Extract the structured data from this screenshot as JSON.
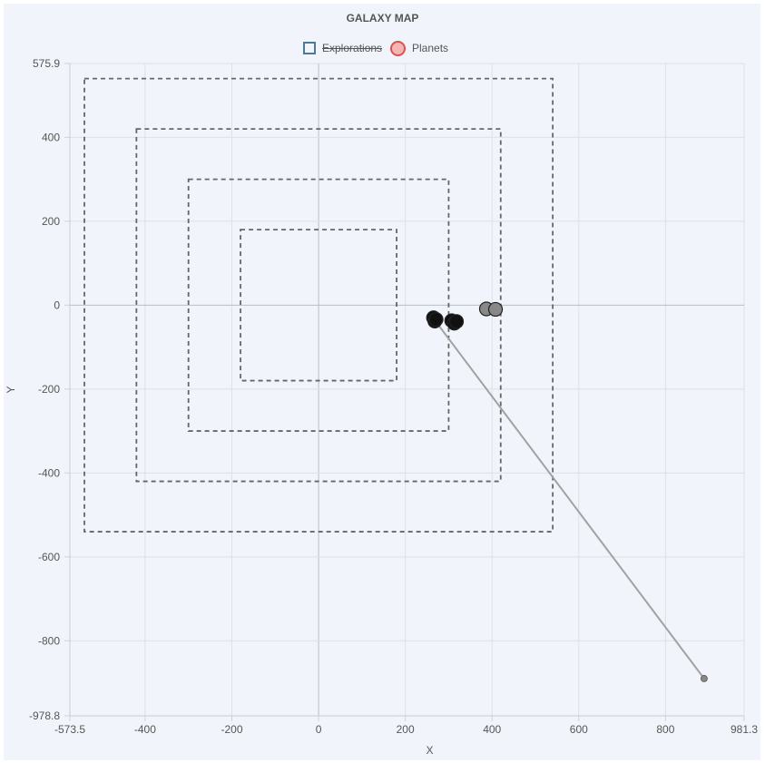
{
  "chart_data": {
    "type": "scatter",
    "title": "GALAXY MAP",
    "xlabel": "X",
    "ylabel": "Y",
    "xlim": [
      -573.5,
      981.3
    ],
    "ylim": [
      -978.8,
      575.9
    ],
    "x_ticks": [
      "-573.5",
      "-400",
      "-200",
      "0",
      "200",
      "400",
      "600",
      "800",
      "981.3"
    ],
    "y_ticks": [
      "575.9",
      "400",
      "200",
      "0",
      "-200",
      "-400",
      "-600",
      "-800",
      "-978.8"
    ],
    "x_tick_values": [
      -573.5,
      -400,
      -200,
      0,
      200,
      400,
      600,
      800,
      981.3
    ],
    "y_tick_values": [
      575.9,
      400,
      200,
      0,
      -200,
      -400,
      -600,
      -800,
      -978.8
    ],
    "grid": true,
    "legend_position": "top",
    "legend": [
      {
        "label": "Explorations",
        "hidden": true,
        "color": "#4c7a92"
      },
      {
        "label": "Planets",
        "hidden": false,
        "color": "#d9534f"
      }
    ],
    "zones": [
      {
        "half_size": 180
      },
      {
        "half_size": 300
      },
      {
        "half_size": 420
      },
      {
        "half_size": 540
      }
    ],
    "planets": [
      {
        "x": 265,
        "y": -30,
        "color": "#111111"
      },
      {
        "x": 268,
        "y": -38,
        "color": "#111111"
      },
      {
        "x": 271,
        "y": -34,
        "color": "#111111"
      },
      {
        "x": 307,
        "y": -37,
        "color": "#111111"
      },
      {
        "x": 313,
        "y": -43,
        "color": "#111111"
      },
      {
        "x": 318,
        "y": -39,
        "color": "#111111"
      },
      {
        "x": 387,
        "y": -9,
        "color": "#888888"
      },
      {
        "x": 408,
        "y": -10,
        "color": "#888888"
      }
    ],
    "path": [
      {
        "x": 268,
        "y": -36
      },
      {
        "x": 889,
        "y": -890
      }
    ],
    "ship": {
      "x": 889,
      "y": -890
    }
  }
}
